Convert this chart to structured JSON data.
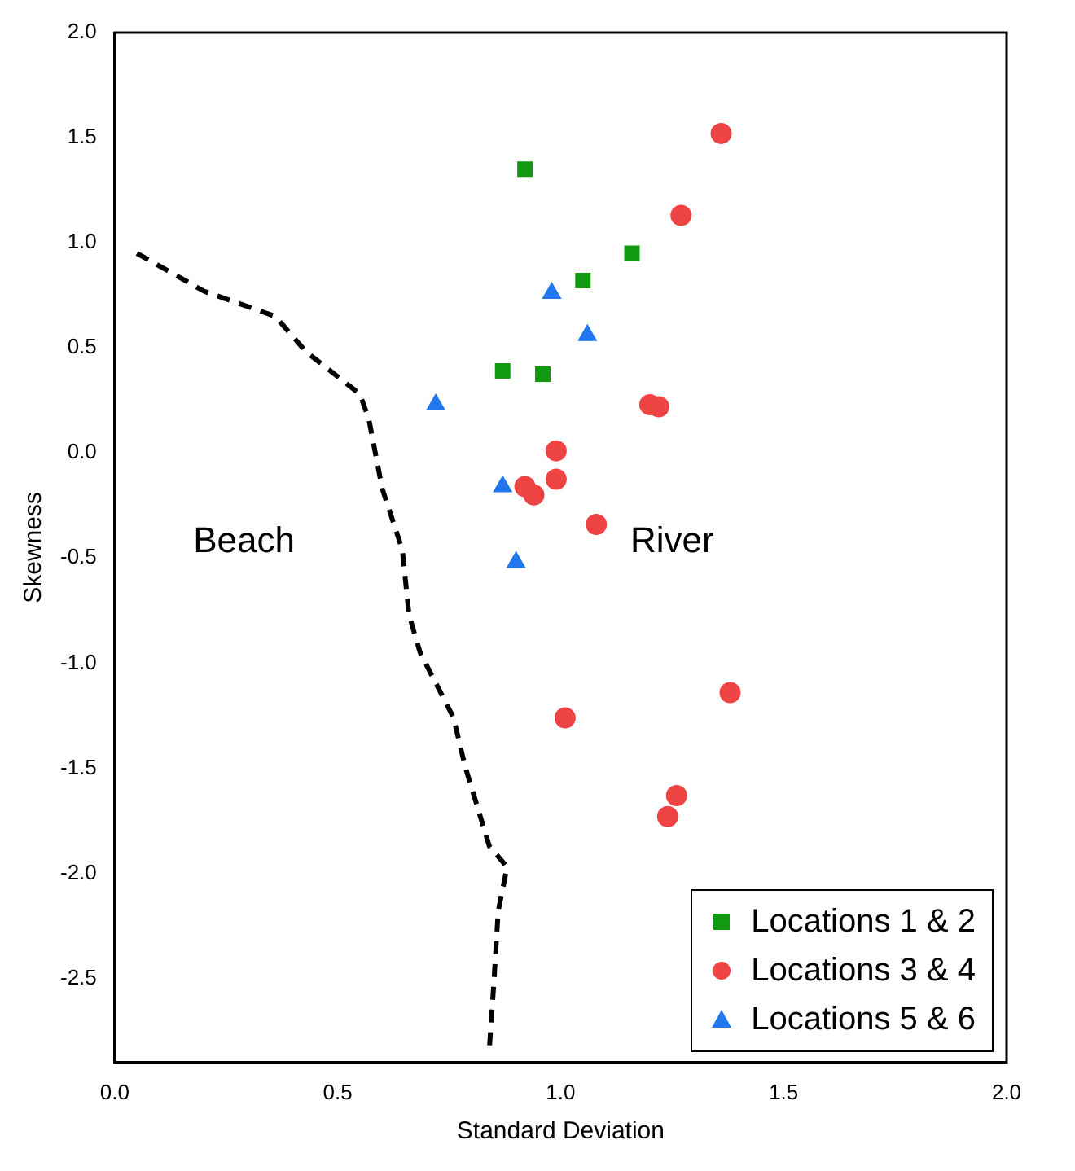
{
  "chart_data": {
    "type": "scatter",
    "xlabel": "Standard Deviation",
    "ylabel": "Skewness",
    "xlim": [
      0,
      2
    ],
    "xticks": [
      {
        "value": 0,
        "label": "0.0"
      },
      {
        "value": 0.5,
        "label": "0.5"
      },
      {
        "value": 1,
        "label": "1.0"
      },
      {
        "value": 1.5,
        "label": "1.5"
      },
      {
        "value": 2,
        "label": "2.0"
      }
    ],
    "ylim": [
      -2.9,
      2
    ],
    "yticks": [
      {
        "value": -2.5,
        "label": "-2.5"
      },
      {
        "value": -2,
        "label": "-2.0"
      },
      {
        "value": -1.5,
        "label": "-1.5"
      },
      {
        "value": -1,
        "label": "-1.0"
      },
      {
        "value": -0.5,
        "label": "-0.5"
      },
      {
        "value": 0,
        "label": "0.0"
      },
      {
        "value": 0.5,
        "label": "0.5"
      },
      {
        "value": 1,
        "label": "1.0"
      },
      {
        "value": 1.5,
        "label": "1.5"
      },
      {
        "value": 2,
        "label": "2.0"
      }
    ],
    "grid": false,
    "legend": "bottom right",
    "series": [
      {
        "type": "line",
        "color": "#000000",
        "line_style": "dashed",
        "marker": "none",
        "x": [
          0.05,
          0.2,
          0.36,
          0.43,
          0.55,
          0.57,
          0.6,
          0.645,
          0.66,
          0.685,
          0.76,
          0.78,
          0.79,
          0.84,
          0.88,
          0.86,
          0.85,
          0.84
        ],
        "values": [
          0.95,
          0.77,
          0.65,
          0.48,
          0.28,
          0.16,
          -0.17,
          -0.46,
          -0.77,
          -0.95,
          -1.26,
          -1.44,
          -1.52,
          -1.87,
          -1.97,
          -2.18,
          -2.53,
          -2.84
        ]
      },
      {
        "name": "Locations 1 & 2",
        "color": "#119911",
        "marker": "square",
        "x": [
          0.92,
          1.05,
          1.16,
          0.87,
          0.96
        ],
        "values": [
          1.35,
          0.82,
          0.95,
          0.39,
          0.375
        ]
      },
      {
        "name": "Locations 3 & 4",
        "color": "#ee4444",
        "marker": "circle",
        "x": [
          1.36,
          1.27,
          1.2,
          1.22,
          0.99,
          0.99,
          0.92,
          0.94,
          1.08,
          1.01,
          1.38,
          1.26,
          1.24
        ],
        "values": [
          1.52,
          1.13,
          0.23,
          0.22,
          0.01,
          -0.125,
          -0.16,
          -0.2,
          -0.34,
          -1.26,
          -1.14,
          -1.63,
          -1.73
        ]
      },
      {
        "name": "Locations 5 & 6",
        "color": "#2277ee",
        "marker": "triangle",
        "x": [
          0.98,
          1.06,
          0.72,
          0.87,
          0.9
        ],
        "values": [
          0.76,
          0.56,
          0.23,
          -0.16,
          -0.52
        ]
      }
    ],
    "annotations": [
      "Beach",
      "River"
    ]
  }
}
